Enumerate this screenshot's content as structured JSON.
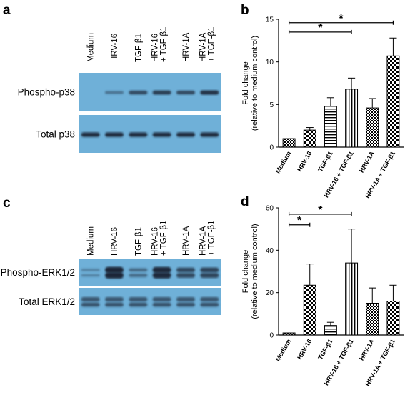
{
  "figure": {
    "panels": {
      "a": {
        "label": "a",
        "lanes": [
          "Medium",
          "HRV-16",
          "TGF-β1",
          "HRV-16|+ TGF-β1",
          "HRV-1A",
          "HRV-1A|+ TGF-β1"
        ],
        "blots": [
          {
            "label": "Phospho-p38",
            "band_intensity": [
              0.0,
              0.25,
              0.6,
              0.7,
              0.6,
              0.8
            ],
            "doublet": false
          },
          {
            "label": "Total p38",
            "band_intensity": [
              0.85,
              0.85,
              0.85,
              0.85,
              0.85,
              0.85
            ],
            "doublet": false
          }
        ]
      },
      "c": {
        "label": "c",
        "lanes": [
          "Medium",
          "HRV-16",
          "TGF-β1",
          "HRV-16|+ TGF-β1",
          "HRV-1A",
          "HRV-1A|+ TGF-β1"
        ],
        "blots": [
          {
            "label": "Phospho-ERK1/2",
            "band_intensity": [
              0.1,
              0.95,
              0.3,
              0.9,
              0.6,
              0.65
            ],
            "doublet": true
          },
          {
            "label": "Total ERK1/2",
            "band_intensity": [
              0.5,
              0.5,
              0.5,
              0.5,
              0.5,
              0.5
            ],
            "doublet": true
          }
        ]
      }
    },
    "colors": {
      "blot_background": "#6fb0d8",
      "band": "#1b2838",
      "bar_stroke": "#000000"
    }
  },
  "chart_data": [
    {
      "panel": "b",
      "type": "bar",
      "ylabel": "Fold change|(relative to medium control)",
      "categories": [
        "Medium",
        "HRV-16",
        "TGF-β1",
        "HRV-16 + TGF-β1",
        "HRV-1A",
        "HRV-1A + TGF-β1"
      ],
      "values": [
        1.0,
        2.0,
        4.8,
        6.8,
        4.6,
        10.7
      ],
      "errors": [
        0.0,
        0.3,
        1.0,
        1.3,
        1.1,
        2.1
      ],
      "patterns": [
        "dense-check",
        "check",
        "hstripe",
        "vstripe",
        "dense-check",
        "check"
      ],
      "ylim": [
        0,
        15
      ],
      "yticks": [
        "0",
        "5",
        "10",
        "15"
      ],
      "grid": false,
      "significance": [
        {
          "from": "Medium",
          "to": "HRV-16 + TGF-β1",
          "label": "*",
          "level": 13.5
        },
        {
          "from": "Medium",
          "to": "HRV-1A + TGF-β1",
          "label": "*",
          "level": 14.6
        }
      ]
    },
    {
      "panel": "d",
      "type": "bar",
      "ylabel": "Fold change|(relative to medium control)",
      "categories": [
        "Medium",
        "HRV-16",
        "TGF-β1",
        "HRV-16 + TGF-β1",
        "HRV-1A",
        "HRV-1A + TGF-β1"
      ],
      "values": [
        1.0,
        23.5,
        4.5,
        34.0,
        15.0,
        16.0
      ],
      "errors": [
        0.0,
        10.0,
        1.5,
        16.0,
        7.2,
        7.5
      ],
      "patterns": [
        "dense-check",
        "check",
        "hstripe",
        "vstripe",
        "dense-check",
        "check"
      ],
      "ylim": [
        0,
        60
      ],
      "yticks": [
        "0",
        "20",
        "40",
        "60"
      ],
      "grid": false,
      "significance": [
        {
          "from": "Medium",
          "to": "HRV-16",
          "label": "*",
          "level": 52.0
        },
        {
          "from": "Medium",
          "to": "HRV-16 + TGF-β1",
          "label": "*",
          "level": 57.0
        }
      ]
    }
  ]
}
